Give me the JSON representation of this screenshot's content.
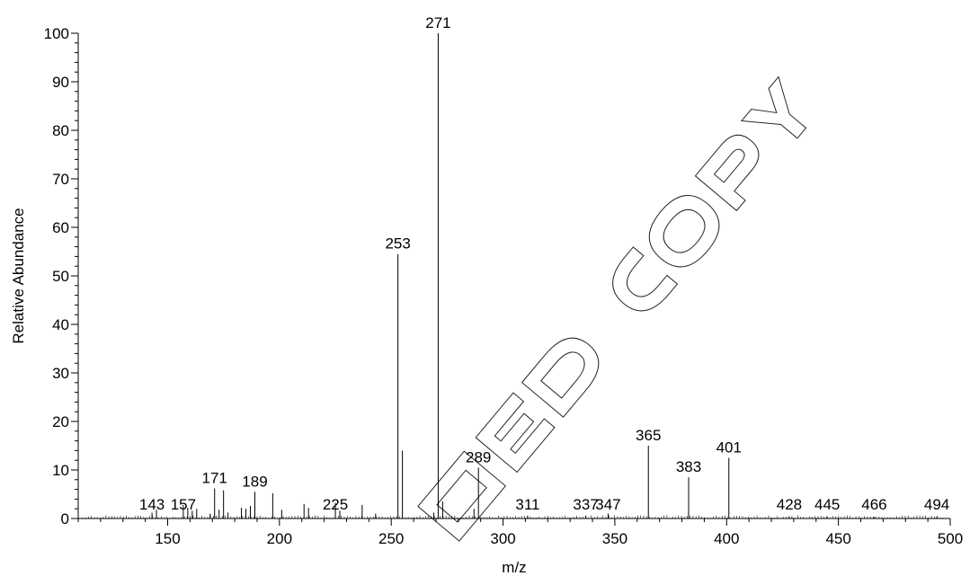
{
  "chart_data": {
    "type": "bar",
    "title": "",
    "xlabel": "m/z",
    "ylabel": "Relative Abundance",
    "xlim": [
      110,
      500
    ],
    "ylim": [
      0,
      100
    ],
    "x_ticks": [
      150,
      200,
      250,
      300,
      350,
      400,
      450,
      500
    ],
    "y_ticks": [
      0,
      10,
      20,
      30,
      40,
      50,
      60,
      70,
      80,
      90,
      100
    ],
    "grid": false,
    "legend": "none",
    "peaks": [
      {
        "mz": 143,
        "abundance": 1.2,
        "label": "143"
      },
      {
        "mz": 145,
        "abundance": 1.8,
        "label": ""
      },
      {
        "mz": 157,
        "abundance": 2.8,
        "label": "157"
      },
      {
        "mz": 159,
        "abundance": 2.2,
        "label": ""
      },
      {
        "mz": 161,
        "abundance": 1.6,
        "label": ""
      },
      {
        "mz": 163,
        "abundance": 2.0,
        "label": ""
      },
      {
        "mz": 169,
        "abundance": 1.0,
        "label": ""
      },
      {
        "mz": 171,
        "abundance": 6.2,
        "label": "171"
      },
      {
        "mz": 173,
        "abundance": 1.8,
        "label": ""
      },
      {
        "mz": 175,
        "abundance": 5.8,
        "label": ""
      },
      {
        "mz": 177,
        "abundance": 1.2,
        "label": ""
      },
      {
        "mz": 183,
        "abundance": 2.2,
        "label": ""
      },
      {
        "mz": 185,
        "abundance": 2.0,
        "label": ""
      },
      {
        "mz": 187,
        "abundance": 2.6,
        "label": ""
      },
      {
        "mz": 189,
        "abundance": 5.5,
        "label": "189"
      },
      {
        "mz": 197,
        "abundance": 5.2,
        "label": ""
      },
      {
        "mz": 201,
        "abundance": 1.8,
        "label": ""
      },
      {
        "mz": 211,
        "abundance": 3.0,
        "label": ""
      },
      {
        "mz": 213,
        "abundance": 2.2,
        "label": ""
      },
      {
        "mz": 225,
        "abundance": 3.2,
        "label": "225"
      },
      {
        "mz": 227,
        "abundance": 1.6,
        "label": ""
      },
      {
        "mz": 237,
        "abundance": 2.8,
        "label": ""
      },
      {
        "mz": 243,
        "abundance": 1.0,
        "label": ""
      },
      {
        "mz": 253,
        "abundance": 54.5,
        "label": "253"
      },
      {
        "mz": 255,
        "abundance": 14.0,
        "label": ""
      },
      {
        "mz": 269,
        "abundance": 1.2,
        "label": ""
      },
      {
        "mz": 271,
        "abundance": 100,
        "label": "271"
      },
      {
        "mz": 273,
        "abundance": 3.5,
        "label": ""
      },
      {
        "mz": 287,
        "abundance": 2.0,
        "label": ""
      },
      {
        "mz": 289,
        "abundance": 10.5,
        "label": "289"
      },
      {
        "mz": 311,
        "abundance": 0.6,
        "label": "311"
      },
      {
        "mz": 337,
        "abundance": 0.6,
        "label": "337"
      },
      {
        "mz": 347,
        "abundance": 1.0,
        "label": "347"
      },
      {
        "mz": 365,
        "abundance": 15.0,
        "label": "365"
      },
      {
        "mz": 383,
        "abundance": 8.5,
        "label": "383"
      },
      {
        "mz": 401,
        "abundance": 12.5,
        "label": "401"
      },
      {
        "mz": 428,
        "abundance": 0.4,
        "label": "428"
      },
      {
        "mz": 445,
        "abundance": 0.4,
        "label": "445"
      },
      {
        "mz": 466,
        "abundance": 0.3,
        "label": "466"
      },
      {
        "mz": 494,
        "abundance": 0.3,
        "label": "494"
      }
    ],
    "colors": {
      "axis": "#000000",
      "peak": "#000000",
      "label_leader": "#22aa22",
      "watermark": "#000000"
    }
  },
  "watermark": {
    "icon": "controlled-copy-watermark"
  }
}
